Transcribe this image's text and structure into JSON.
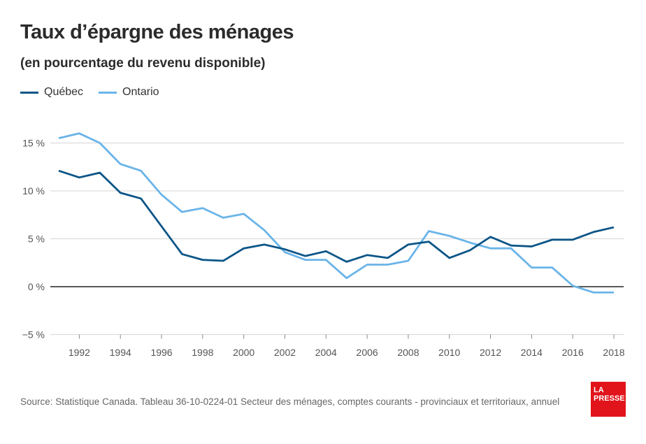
{
  "header": {
    "title": "Taux d’épargne des ménages",
    "subtitle": "(en pourcentage du revenu disponible)"
  },
  "legend": {
    "items": [
      {
        "label": "Québec",
        "color": "#0b5587"
      },
      {
        "label": "Ontario",
        "color": "#6ab4e8"
      }
    ]
  },
  "footer": {
    "source": "Source: Statistique Canada. Tableau 36-10-0224-01 Secteur des ménages, comptes courants - provinciaux et territoriaux, annuel",
    "logo_line1": "LA",
    "logo_line2": "PRESSE",
    "logo_color": "#e1141b"
  },
  "chart_data": {
    "type": "line",
    "x": [
      1991,
      1992,
      1993,
      1994,
      1995,
      1996,
      1997,
      1998,
      1999,
      2000,
      2001,
      2002,
      2003,
      2004,
      2005,
      2006,
      2007,
      2008,
      2009,
      2010,
      2011,
      2012,
      2013,
      2014,
      2015,
      2016,
      2017,
      2018
    ],
    "series": [
      {
        "name": "Québec",
        "color": "#0b5587",
        "values": [
          12.1,
          11.4,
          11.9,
          9.8,
          9.2,
          6.3,
          3.4,
          2.8,
          2.7,
          4.0,
          4.4,
          3.9,
          3.2,
          3.7,
          2.6,
          3.3,
          3.0,
          4.4,
          4.7,
          3.0,
          3.8,
          5.2,
          4.3,
          4.2,
          4.9,
          4.9,
          5.7,
          6.2
        ]
      },
      {
        "name": "Ontario",
        "color": "#6ab4e8",
        "values": [
          15.5,
          16.0,
          15.0,
          12.8,
          12.1,
          9.6,
          7.8,
          8.2,
          7.2,
          7.6,
          5.9,
          3.6,
          2.8,
          2.8,
          0.9,
          2.3,
          2.3,
          2.7,
          5.8,
          5.3,
          4.6,
          4.0,
          4.0,
          2.0,
          2.0,
          0.1,
          -0.6,
          -0.6
        ]
      }
    ],
    "xlim": [
      1991,
      2018
    ],
    "ylim": [
      -5,
      18
    ],
    "yticks": [
      15,
      10,
      5,
      0,
      -5
    ],
    "ytick_labels": [
      "15 %",
      "10 %",
      "5 %",
      "0 %",
      "−5 %"
    ],
    "xticks": [
      1992,
      1994,
      1996,
      1998,
      2000,
      2002,
      2004,
      2006,
      2008,
      2010,
      2012,
      2014,
      2016,
      2018
    ],
    "xtick_labels": [
      "1992",
      "1994",
      "1996",
      "1998",
      "2000",
      "2002",
      "2004",
      "2006",
      "2008",
      "2010",
      "2012",
      "2014",
      "2016",
      "2018"
    ],
    "grid": true,
    "legend_position": "top-left"
  }
}
